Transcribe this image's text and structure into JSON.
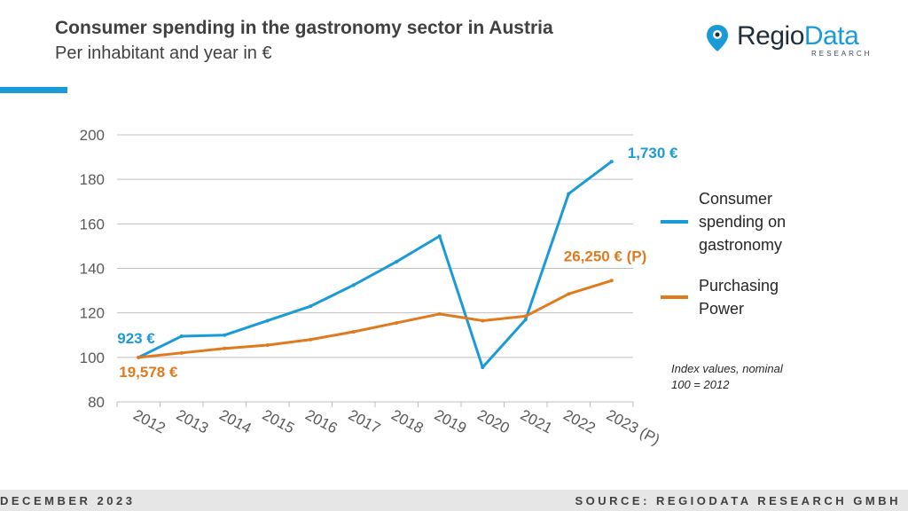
{
  "header": {
    "title": "Consumer spending in the gastronomy sector in Austria",
    "subtitle": "Per inhabitant and year in €"
  },
  "logo": {
    "name_part1": "Regio",
    "name_part2": "Data",
    "tagline": "RESEARCH"
  },
  "footer": {
    "date": "DECEMBER 2023",
    "source": "SOURCE: REGIODATA RESEARCH GMBH"
  },
  "colors": {
    "accent": "#1a9bd7",
    "consumer_spending": "#1a9bd7",
    "purchasing_power": "#e07a1f",
    "text": "#404040"
  },
  "chart_data": {
    "type": "line",
    "x": [
      "2012",
      "2013",
      "2014",
      "2015",
      "2016",
      "2017",
      "2018",
      "2019",
      "2020",
      "2021",
      "2022",
      "2023 (P)"
    ],
    "ylim": [
      80,
      200
    ],
    "yticks": [
      80,
      100,
      120,
      140,
      160,
      180,
      200
    ],
    "grid": true,
    "legend_position": "right",
    "series": [
      {
        "name": "Consumer spending on gastronomy",
        "legend_lines": [
          "Consumer",
          "spending on",
          "gastronomy"
        ],
        "color": "#1a9bd7",
        "values": [
          100,
          109.5,
          110,
          116.5,
          123,
          132.5,
          143,
          154.5,
          95.5,
          117,
          173.5,
          188
        ]
      },
      {
        "name": "Purchasing Power",
        "legend_lines": [
          "Purchasing",
          "Power"
        ],
        "color": "#e07a1f",
        "values": [
          100,
          102,
          104,
          105.5,
          108,
          111.5,
          115.5,
          119.5,
          116.5,
          118.5,
          128.5,
          134.5
        ]
      }
    ],
    "annotations": [
      {
        "text": "923 €",
        "series": 0,
        "point": "start"
      },
      {
        "text": "19,578 €",
        "series": 1,
        "point": "start"
      },
      {
        "text": "1,730 €",
        "series": 0,
        "point": "end"
      },
      {
        "text": "26,250 € (P)",
        "series": 1,
        "point": "end"
      }
    ],
    "note": [
      "Index values, nominal",
      "100 = 2012"
    ]
  }
}
